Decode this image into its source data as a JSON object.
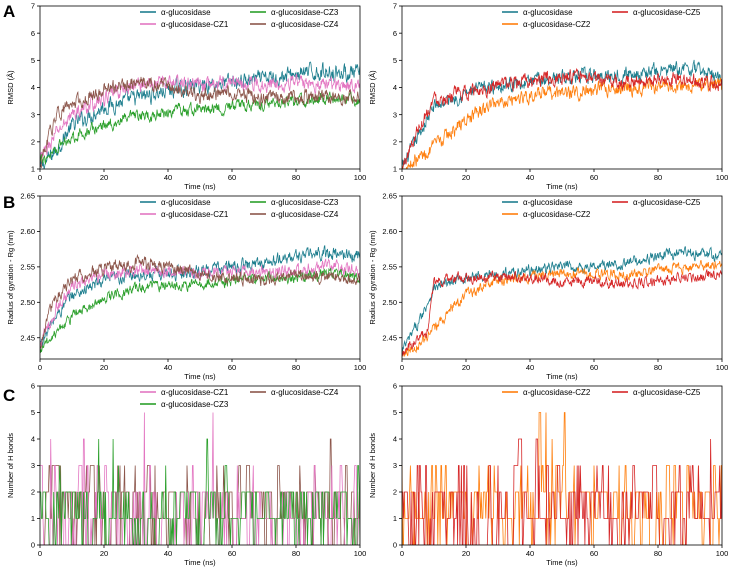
{
  "panel_letters": [
    "A",
    "B",
    "C"
  ],
  "colors": {
    "glucosidase": "#1f77b4",
    "cz1": "#e377c2",
    "cz2": "#ff7f0e",
    "cz3": "#2ca02c",
    "cz4": "#8c564b",
    "cz5": "#d62728",
    "teal": "#1f7f8f"
  },
  "chart_data": [
    {
      "id": "A-left",
      "type": "line",
      "panel": "A",
      "xlabel": "Time (ns)",
      "ylabel": "RMSD (Å)",
      "xlim": [
        0,
        100
      ],
      "ylim": [
        1,
        7
      ],
      "xticks": [
        0,
        20,
        40,
        60,
        80,
        100
      ],
      "yticks": [
        1,
        2,
        3,
        4,
        5,
        6,
        7
      ],
      "legend": [
        {
          "label": "α-glucosidase",
          "key": "glucosidase"
        },
        {
          "label": "α-glucosidase-CZ3",
          "key": "cz3"
        },
        {
          "label": "α-glucosidase-CZ1",
          "key": "cz1"
        },
        {
          "label": "α-glucosidase-CZ4",
          "key": "cz4"
        }
      ],
      "series": [
        {
          "name": "α-glucosidase",
          "key": "teal",
          "t": [
            0,
            5,
            10,
            20,
            30,
            40,
            50,
            60,
            70,
            80,
            90,
            100
          ],
          "v": [
            1.0,
            1.7,
            2.6,
            3.3,
            3.6,
            3.9,
            4.1,
            4.2,
            4.3,
            4.5,
            4.6,
            4.5
          ],
          "noise": 0.4
        },
        {
          "name": "α-glucosidase-CZ1",
          "key": "cz1",
          "t": [
            0,
            5,
            10,
            20,
            30,
            40,
            50,
            60,
            70,
            80,
            90,
            100
          ],
          "v": [
            1.3,
            2.3,
            3.0,
            3.6,
            4.1,
            4.2,
            4.1,
            4.2,
            4.1,
            4.2,
            4.1,
            4.1
          ],
          "noise": 0.35
        },
        {
          "name": "α-glucosidase-CZ3",
          "key": "cz3",
          "t": [
            0,
            5,
            10,
            20,
            30,
            40,
            50,
            60,
            70,
            80,
            90,
            100
          ],
          "v": [
            1.2,
            1.8,
            2.2,
            2.6,
            2.9,
            3.1,
            3.2,
            3.3,
            3.4,
            3.5,
            3.6,
            3.5
          ],
          "noise": 0.3
        },
        {
          "name": "α-glucosidase-CZ4",
          "key": "cz4",
          "t": [
            0,
            5,
            10,
            20,
            30,
            40,
            50,
            60,
            70,
            80,
            90,
            100
          ],
          "v": [
            1.1,
            3.0,
            3.4,
            3.9,
            4.2,
            4.0,
            3.7,
            3.8,
            3.6,
            3.6,
            3.7,
            3.6
          ],
          "noise": 0.35
        }
      ]
    },
    {
      "id": "A-right",
      "type": "line",
      "panel": "A",
      "xlabel": "Time (ns)",
      "ylabel": "RMSD (Å)",
      "xlim": [
        0,
        100
      ],
      "ylim": [
        1,
        7
      ],
      "xticks": [
        0,
        20,
        40,
        60,
        80,
        100
      ],
      "yticks": [
        1,
        2,
        3,
        4,
        5,
        6,
        7
      ],
      "legend": [
        {
          "label": "α-glucosidase",
          "key": "glucosidase"
        },
        {
          "label": "α-glucosidase-CZ5",
          "key": "cz5"
        },
        {
          "label": "α-glucosidase-CZ2",
          "key": "cz2"
        }
      ],
      "series": [
        {
          "name": "α-glucosidase",
          "key": "teal",
          "t": [
            0,
            5,
            10,
            20,
            30,
            40,
            50,
            60,
            70,
            80,
            90,
            100
          ],
          "v": [
            1.0,
            2.2,
            3.3,
            3.8,
            4.1,
            4.2,
            4.4,
            4.4,
            4.5,
            4.6,
            4.7,
            4.4
          ],
          "noise": 0.35
        },
        {
          "name": "α-glucosidase-CZ2",
          "key": "cz2",
          "t": [
            0,
            5,
            10,
            20,
            30,
            40,
            50,
            60,
            70,
            80,
            90,
            100
          ],
          "v": [
            1.0,
            1.4,
            1.8,
            2.8,
            3.5,
            3.7,
            3.8,
            3.9,
            4.0,
            4.0,
            4.1,
            4.1
          ],
          "noise": 0.35
        },
        {
          "name": "α-glucosidase-CZ5",
          "key": "cz5",
          "t": [
            0,
            5,
            10,
            20,
            30,
            40,
            50,
            60,
            70,
            80,
            90,
            100
          ],
          "v": [
            1.0,
            2.5,
            3.6,
            3.8,
            4.1,
            4.2,
            4.4,
            4.3,
            4.2,
            4.3,
            4.3,
            4.2
          ],
          "noise": 0.35
        }
      ]
    },
    {
      "id": "B-left",
      "type": "line",
      "panel": "B",
      "xlabel": "Time (ns)",
      "ylabel": "Radius of gyration - Rg (nm)",
      "xlim": [
        0,
        100
      ],
      "ylim": [
        2.42,
        2.65
      ],
      "xticks": [
        0,
        20,
        40,
        60,
        80,
        100
      ],
      "yticks": [
        2.45,
        2.5,
        2.55,
        2.6,
        2.65
      ],
      "ytick_labels": [
        "2.45",
        "2.50",
        "2.55",
        "2.60",
        "2.65"
      ],
      "legend": [
        {
          "label": "α-glucosidase",
          "key": "glucosidase"
        },
        {
          "label": "α-glucosidase-CZ3",
          "key": "cz3"
        },
        {
          "label": "α-glucosidase-CZ1",
          "key": "cz1"
        },
        {
          "label": "α-glucosidase-CZ4",
          "key": "cz4"
        }
      ],
      "series": [
        {
          "name": "α-glucosidase",
          "key": "teal",
          "t": [
            0,
            5,
            10,
            20,
            30,
            40,
            50,
            60,
            70,
            80,
            90,
            100
          ],
          "v": [
            2.44,
            2.48,
            2.51,
            2.53,
            2.54,
            2.54,
            2.545,
            2.55,
            2.555,
            2.565,
            2.57,
            2.565
          ],
          "noise": 0.012
        },
        {
          "name": "α-glucosidase-CZ1",
          "key": "cz1",
          "t": [
            0,
            5,
            10,
            20,
            30,
            40,
            50,
            60,
            70,
            80,
            90,
            100
          ],
          "v": [
            2.44,
            2.49,
            2.52,
            2.54,
            2.545,
            2.545,
            2.54,
            2.545,
            2.545,
            2.545,
            2.55,
            2.545
          ],
          "noise": 0.012
        },
        {
          "name": "α-glucosidase-CZ3",
          "key": "cz3",
          "t": [
            0,
            5,
            10,
            20,
            30,
            40,
            50,
            60,
            70,
            80,
            90,
            100
          ],
          "v": [
            2.43,
            2.46,
            2.48,
            2.505,
            2.52,
            2.525,
            2.525,
            2.53,
            2.535,
            2.535,
            2.54,
            2.535
          ],
          "noise": 0.01
        },
        {
          "name": "α-glucosidase-CZ4",
          "key": "cz4",
          "t": [
            0,
            5,
            10,
            20,
            30,
            40,
            50,
            60,
            70,
            80,
            90,
            100
          ],
          "v": [
            2.44,
            2.51,
            2.53,
            2.55,
            2.555,
            2.55,
            2.54,
            2.535,
            2.53,
            2.535,
            2.535,
            2.535
          ],
          "noise": 0.012
        }
      ]
    },
    {
      "id": "B-right",
      "type": "line",
      "panel": "B",
      "xlabel": "Time (ns)",
      "ylabel": "Radius of gyration - Rg (nm)",
      "xlim": [
        0,
        100
      ],
      "ylim": [
        2.42,
        2.65
      ],
      "xticks": [
        0,
        20,
        40,
        60,
        80,
        100
      ],
      "yticks": [
        2.45,
        2.5,
        2.55,
        2.6,
        2.65
      ],
      "ytick_labels": [
        "2.45",
        "2.50",
        "2.55",
        "2.60",
        "2.65"
      ],
      "legend": [
        {
          "label": "α-glucosidase",
          "key": "glucosidase"
        },
        {
          "label": "α-glucosidase-CZ5",
          "key": "cz5"
        },
        {
          "label": "α-glucosidase-CZ2",
          "key": "cz2"
        }
      ],
      "series": [
        {
          "name": "α-glucosidase",
          "key": "teal",
          "t": [
            0,
            5,
            10,
            20,
            30,
            40,
            50,
            60,
            70,
            80,
            90,
            100
          ],
          "v": [
            2.43,
            2.47,
            2.52,
            2.535,
            2.54,
            2.545,
            2.55,
            2.55,
            2.555,
            2.565,
            2.57,
            2.565
          ],
          "noise": 0.01
        },
        {
          "name": "α-glucosidase-CZ2",
          "key": "cz2",
          "t": [
            0,
            5,
            10,
            15,
            20,
            30,
            40,
            50,
            60,
            70,
            80,
            90,
            100
          ],
          "v": [
            2.43,
            2.44,
            2.46,
            2.49,
            2.51,
            2.53,
            2.535,
            2.54,
            2.54,
            2.54,
            2.545,
            2.55,
            2.555
          ],
          "noise": 0.01
        },
        {
          "name": "α-glucosidase-CZ5",
          "key": "cz5",
          "t": [
            0,
            3,
            8,
            10,
            20,
            30,
            40,
            50,
            60,
            70,
            80,
            90,
            100
          ],
          "v": [
            2.43,
            2.44,
            2.46,
            2.53,
            2.535,
            2.535,
            2.535,
            2.53,
            2.53,
            2.525,
            2.53,
            2.535,
            2.54
          ],
          "noise": 0.01
        }
      ]
    },
    {
      "id": "C-left",
      "type": "line",
      "panel": "C",
      "xlabel": "Time (ns)",
      "ylabel": "Number of H bonds",
      "xlim": [
        0,
        100
      ],
      "ylim": [
        0,
        6
      ],
      "xticks": [
        0,
        20,
        40,
        60,
        80,
        100
      ],
      "yticks": [
        0,
        1,
        2,
        3,
        4,
        5,
        6
      ],
      "legend": [
        {
          "label": "α-glucosidase-CZ1",
          "key": "cz1"
        },
        {
          "label": "α-glucosidase-CZ4",
          "key": "cz4"
        },
        {
          "label": "α-glucosidase-CZ3",
          "key": "cz3"
        }
      ],
      "series": [
        {
          "name": "α-glucosidase-CZ4",
          "key": "cz4",
          "discrete": true,
          "levels": [
            0,
            1,
            2,
            3
          ],
          "weights": [
            0.25,
            0.2,
            0.45,
            0.1
          ]
        },
        {
          "name": "α-glucosidase-CZ1",
          "key": "cz1",
          "discrete": true,
          "levels": [
            0,
            1,
            2,
            3
          ],
          "weights": [
            0.3,
            0.4,
            0.25,
            0.05
          ]
        },
        {
          "name": "α-glucosidase-CZ3",
          "key": "cz3",
          "discrete": true,
          "levels": [
            0,
            1,
            2,
            3
          ],
          "weights": [
            0.25,
            0.45,
            0.27,
            0.03
          ]
        }
      ]
    },
    {
      "id": "C-right",
      "type": "line",
      "panel": "C",
      "xlabel": "Time (ns)",
      "ylabel": "Number of H bonds",
      "xlim": [
        0,
        100
      ],
      "ylim": [
        0,
        6
      ],
      "xticks": [
        0,
        20,
        40,
        60,
        80,
        100
      ],
      "yticks": [
        0,
        1,
        2,
        3,
        4,
        5,
        6
      ],
      "legend": [
        {
          "label": "α-glucosidase-CZ2",
          "key": "cz2"
        },
        {
          "label": "α-glucosidase-CZ5",
          "key": "cz5"
        }
      ],
      "series": [
        {
          "name": "α-glucosidase-CZ2",
          "key": "cz2",
          "discrete": true,
          "levels": [
            0,
            1,
            2,
            3
          ],
          "weights": [
            0.2,
            0.35,
            0.35,
            0.1
          ]
        },
        {
          "name": "α-glucosidase-CZ5",
          "key": "cz5",
          "discrete": true,
          "levels": [
            0,
            1,
            2,
            3
          ],
          "weights": [
            0.25,
            0.35,
            0.3,
            0.1
          ]
        }
      ]
    }
  ]
}
